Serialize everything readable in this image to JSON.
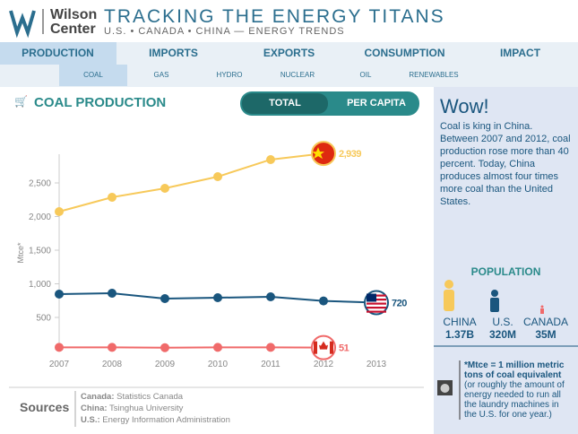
{
  "header": {
    "logo": [
      "Wilson",
      "Center"
    ],
    "title": "TRACKING THE ENERGY TITANS",
    "subtitle": "U.S. • CANADA • CHINA — ENERGY TRENDS"
  },
  "tabs": [
    "PRODUCTION",
    "IMPORTS",
    "EXPORTS",
    "CONSUMPTION",
    "IMPACT"
  ],
  "subtabs": [
    "COAL",
    "GAS",
    "HYDRO",
    "NUCLEAR",
    "OIL",
    "RENEWABLES"
  ],
  "toggle": [
    "TOTAL",
    "PER CAPITA"
  ],
  "chart_data": {
    "type": "line",
    "title": "COAL PRODUCTION",
    "y_label": "Mtce*",
    "x": [
      2007,
      2008,
      2009,
      2010,
      2011,
      2012,
      2013
    ],
    "xlim": [
      2007,
      2013
    ],
    "xticks": [
      2007,
      2008,
      2009,
      2010,
      2011,
      2012,
      2013
    ],
    "ylim": [
      0,
      3000
    ],
    "yticks": [
      500,
      {
        "value": 1000,
        "label": "1,000"
      },
      {
        "value": 1500,
        "label": "1,500"
      },
      {
        "value": 2000,
        "label": "2,000"
      },
      {
        "value": 2500,
        "label": "2,500"
      }
    ],
    "series": [
      {
        "name": "China",
        "color": "#f7c95a",
        "values": [
          2073,
          2287,
          2420,
          2593,
          2847,
          2939,
          null
        ],
        "value_labels": [
          null,
          null,
          null,
          null,
          null,
          "2,939",
          null
        ]
      },
      {
        "name": "U.S.",
        "color": "#1a567e",
        "values": [
          847,
          860,
          780,
          793,
          807,
          745,
          720
        ],
        "value_labels": [
          null,
          null,
          null,
          null,
          null,
          null,
          "720"
        ]
      },
      {
        "name": "Canada",
        "color": "#f06a6a",
        "values": [
          55,
          55,
          50,
          55,
          55,
          51,
          null
        ],
        "value_labels": [
          null,
          null,
          null,
          null,
          null,
          "51",
          null
        ]
      }
    ]
  },
  "panel": {
    "heading": "Wow!",
    "text": "Coal is king in China. Between 2007 and 2012, coal production rose more than 40 percent. Today, China produces almost four times more coal than the United States.",
    "population": {
      "title": "POPULATION",
      "items": [
        {
          "name": "CHINA",
          "value": "1.37B"
        },
        {
          "name": "U.S.",
          "value": "320M"
        },
        {
          "name": "CANADA",
          "value": "35M"
        }
      ]
    },
    "note": {
      "bold": "*Mtce = 1 million metric tons of coal equivalent",
      "text": "(or roughly the amount of energy needed to run all the laundry machines in the U.S. for one year.)"
    }
  },
  "sources": {
    "title": "Sources",
    "items": [
      {
        "name": "Canada:",
        "text": "Statistics Canada"
      },
      {
        "name": "China:",
        "text": "Tsinghua University"
      },
      {
        "name": "U.S.:",
        "text": "Energy Information Administration"
      }
    ]
  }
}
